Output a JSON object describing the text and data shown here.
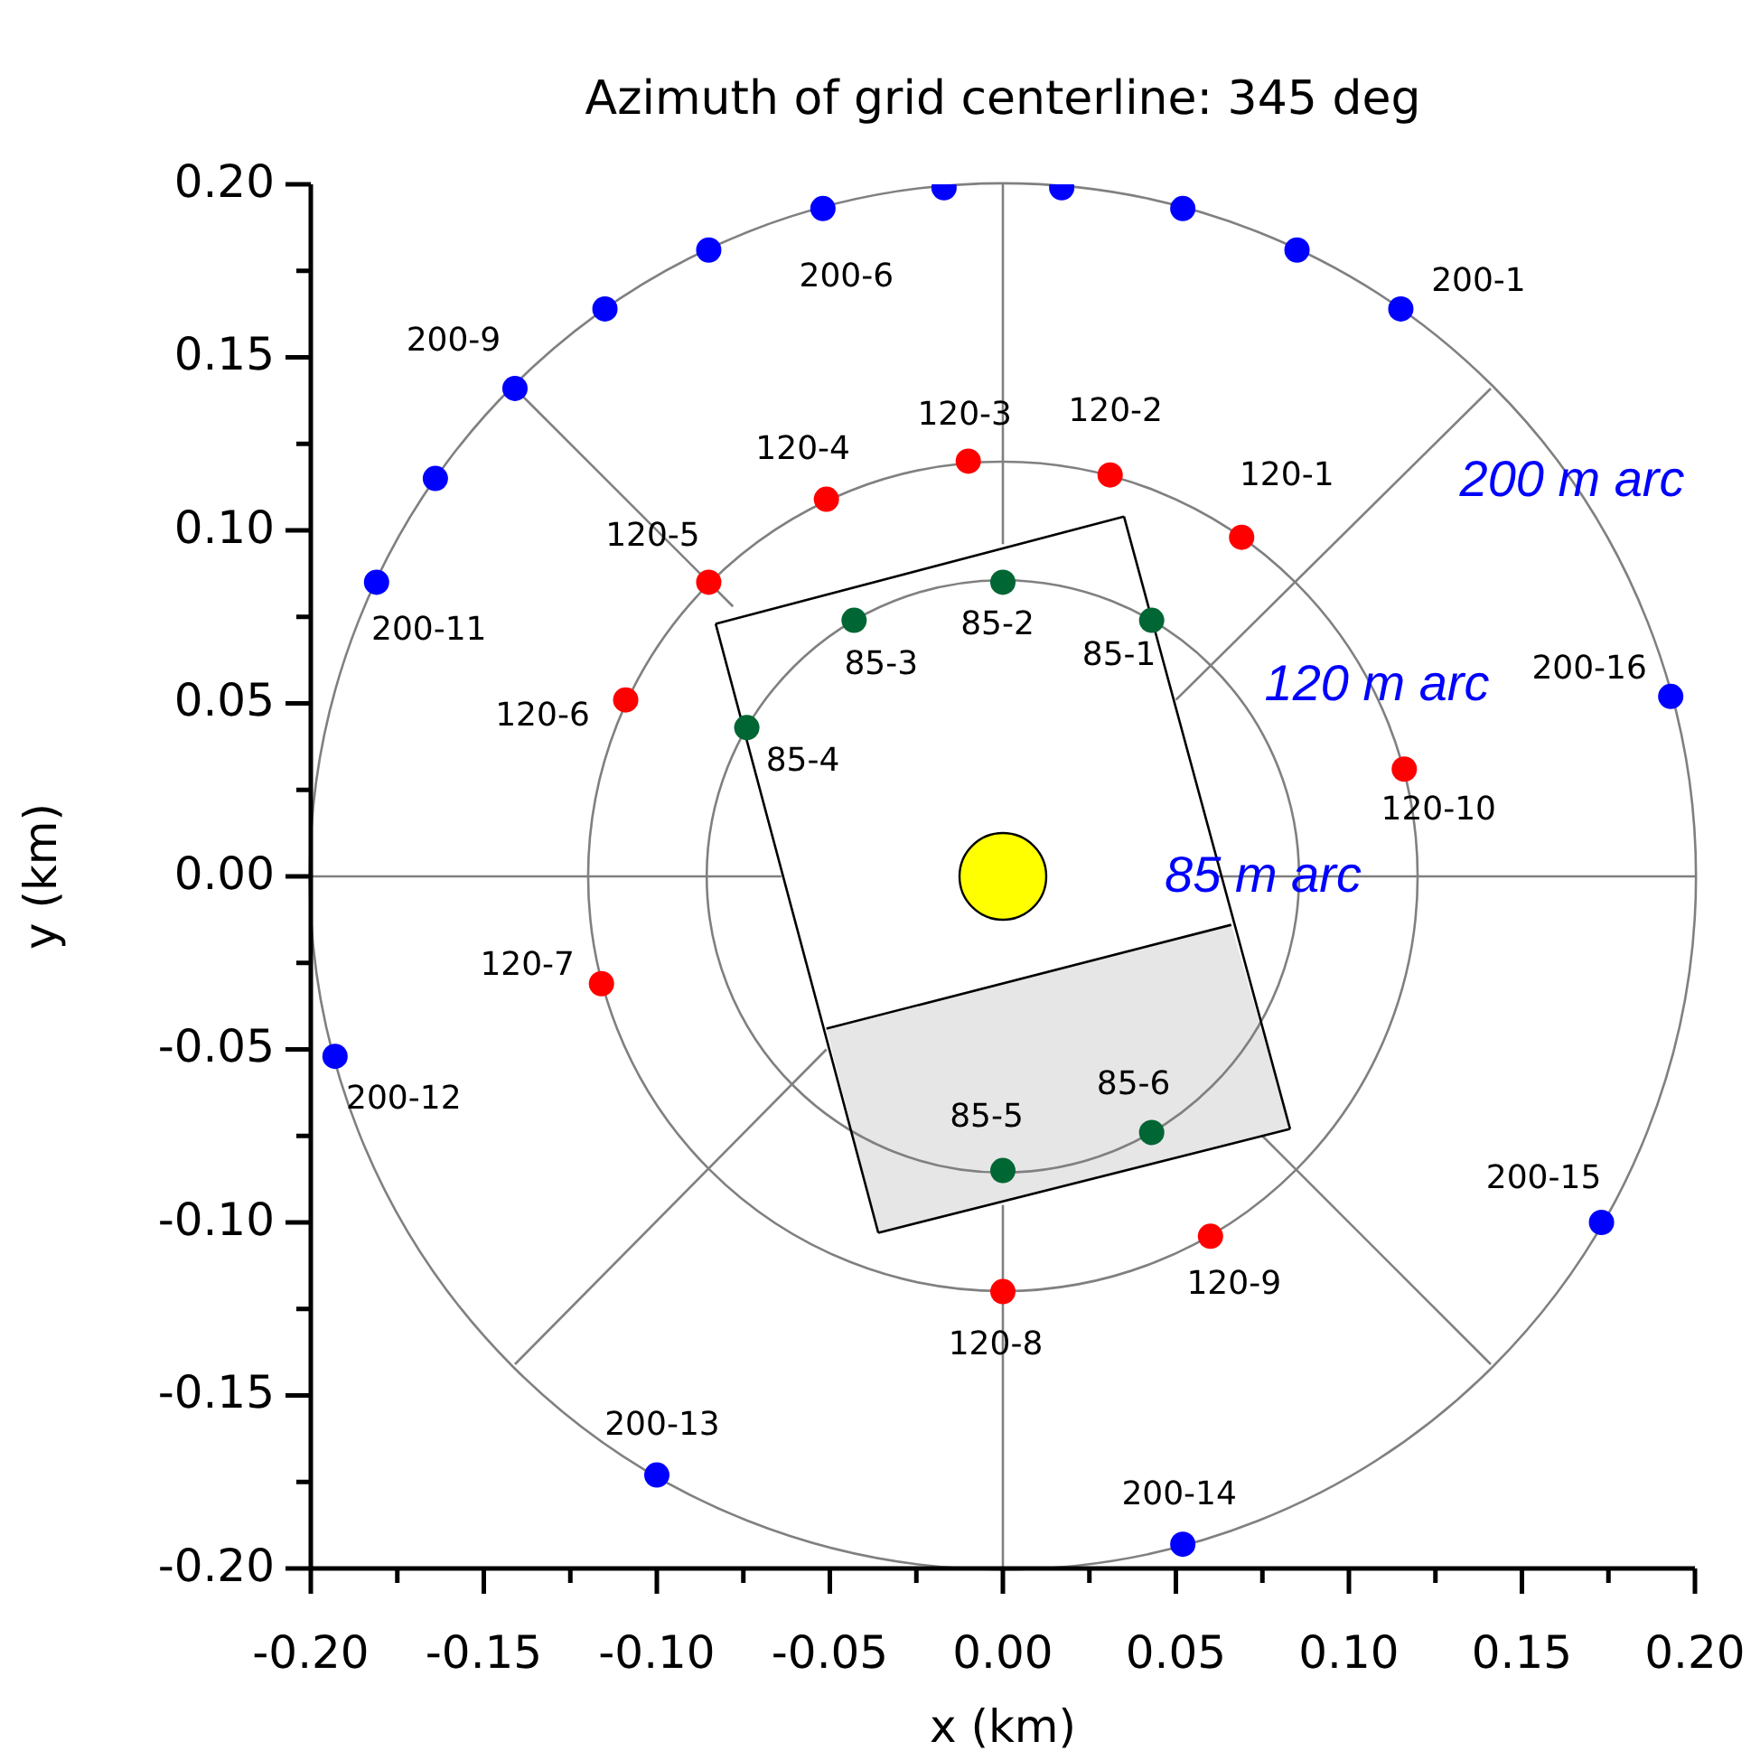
{
  "chart_data": {
    "type": "scatter",
    "title": "Azimuth of grid centerline: 345 deg",
    "xlabel": "x (km)",
    "ylabel": "y (km)",
    "xlim": [
      -0.2,
      0.2
    ],
    "ylim": [
      -0.2,
      0.2
    ],
    "xticks": [
      {
        "value": -0.2,
        "label": "-0.20"
      },
      {
        "value": -0.175,
        "label": null
      },
      {
        "value": -0.15,
        "label": "-0.15"
      },
      {
        "value": -0.125,
        "label": null
      },
      {
        "value": -0.1,
        "label": "-0.10"
      },
      {
        "value": -0.075,
        "label": null
      },
      {
        "value": -0.05,
        "label": "-0.05"
      },
      {
        "value": -0.025,
        "label": null
      },
      {
        "value": 0,
        "label": "0.00"
      },
      {
        "value": 0.025,
        "label": null
      },
      {
        "value": 0.05,
        "label": "0.05"
      },
      {
        "value": 0.075,
        "label": null
      },
      {
        "value": 0.1,
        "label": "0.10"
      },
      {
        "value": 0.125,
        "label": null
      },
      {
        "value": 0.15,
        "label": "0.15"
      },
      {
        "value": 0.175,
        "label": null
      },
      {
        "value": 0.2,
        "label": "0.20"
      }
    ],
    "yticks": [
      {
        "value": -0.2,
        "label": "-0.20"
      },
      {
        "value": -0.175,
        "label": null
      },
      {
        "value": -0.15,
        "label": "-0.15"
      },
      {
        "value": -0.125,
        "label": null
      },
      {
        "value": -0.1,
        "label": "-0.10"
      },
      {
        "value": -0.075,
        "label": null
      },
      {
        "value": -0.05,
        "label": "-0.05"
      },
      {
        "value": -0.025,
        "label": null
      },
      {
        "value": 0,
        "label": "0.00"
      },
      {
        "value": 0.025,
        "label": null
      },
      {
        "value": 0.05,
        "label": "0.05"
      },
      {
        "value": 0.075,
        "label": null
      },
      {
        "value": 0.1,
        "label": "0.10"
      },
      {
        "value": 0.125,
        "label": null
      },
      {
        "value": 0.15,
        "label": "0.15"
      },
      {
        "value": 0.175,
        "label": null
      },
      {
        "value": 0.2,
        "label": "0.20"
      }
    ],
    "series": [
      {
        "type": "line",
        "color": "#808080",
        "marker": "none",
        "x": [
          0,
          0
        ],
        "values": [
          0.2,
          0.096
        ]
      },
      {
        "type": "line",
        "color": "#808080",
        "marker": "none",
        "x": [
          0,
          0
        ],
        "values": [
          -0.095,
          -0.2
        ]
      },
      {
        "type": "line",
        "color": "#808080",
        "marker": "none",
        "x": [
          -0.2,
          -0.064
        ],
        "values": [
          0,
          0
        ]
      },
      {
        "type": "line",
        "color": "#808080",
        "marker": "none",
        "x": [
          0.062,
          0.2
        ],
        "values": [
          0,
          0
        ]
      },
      {
        "type": "line",
        "color": "#808080",
        "marker": "none",
        "x": [
          0.05,
          0.141
        ],
        "values": [
          0.051,
          0.141
        ]
      },
      {
        "type": "line",
        "color": "#808080",
        "marker": "none",
        "x": [
          -0.141,
          -0.078
        ],
        "values": [
          0.141,
          0.078
        ]
      },
      {
        "type": "line",
        "color": "#808080",
        "marker": "none",
        "x": [
          -0.141,
          -0.051
        ],
        "values": [
          -0.141,
          -0.05
        ]
      },
      {
        "type": "line",
        "color": "#808080",
        "marker": "none",
        "x": [
          0.075,
          0.141
        ],
        "values": [
          -0.075,
          -0.141
        ]
      },
      {
        "type": "line",
        "color": "#000000",
        "marker": "none",
        "x": [
          -0.083,
          0.035
        ],
        "values": [
          0.073,
          0.104
        ]
      },
      {
        "type": "line",
        "color": "#000000",
        "marker": "none",
        "x": [
          0.035,
          0.083
        ],
        "values": [
          0.104,
          -0.073
        ]
      },
      {
        "type": "line",
        "color": "#000000",
        "marker": "none",
        "x": [
          0.083,
          -0.036
        ],
        "values": [
          -0.073,
          -0.103
        ]
      },
      {
        "type": "line",
        "color": "#000000",
        "marker": "none",
        "x": [
          -0.083,
          -0.036
        ],
        "values": [
          0.073,
          -0.103
        ]
      },
      {
        "type": "line",
        "color": "#000000",
        "marker": "none",
        "x": [
          -0.051,
          0.066
        ],
        "values": [
          -0.044,
          -0.014
        ]
      },
      {
        "color": "#0000ff",
        "marker": "circle",
        "x": [
          0.115,
          0.085,
          0.052,
          0.017,
          -0.017,
          -0.052,
          -0.085,
          -0.115,
          -0.141,
          -0.164,
          -0.181,
          -0.193,
          -0.1,
          0.052,
          0.173,
          0.193
        ],
        "values": [
          0.164,
          0.181,
          0.193,
          0.199,
          0.199,
          0.193,
          0.181,
          0.164,
          0.141,
          0.115,
          0.085,
          -0.052,
          -0.173,
          -0.193,
          -0.1,
          0.052
        ]
      },
      {
        "color": "#ff0000",
        "marker": "circle",
        "x": [
          0.069,
          0.031,
          -0.01,
          -0.051,
          -0.085,
          -0.109,
          -0.116,
          0,
          0.06,
          0.116
        ],
        "values": [
          0.098,
          0.116,
          0.12,
          0.109,
          0.085,
          0.051,
          -0.031,
          -0.12,
          -0.104,
          0.031
        ]
      },
      {
        "color": "#006633",
        "marker": "circle",
        "x": [
          0.043,
          0,
          -0.043,
          -0.074,
          0,
          0.043
        ],
        "values": [
          0.074,
          0.085,
          0.074,
          0.043,
          -0.085,
          -0.074
        ]
      },
      {
        "type": "bubble",
        "color": "#ffff00",
        "x": [
          0
        ],
        "values": [
          0
        ],
        "sizes": [
          1
        ]
      }
    ],
    "annotations": [
      {
        "text": "200-1",
        "x": 0.115,
        "y": 0.164
      },
      {
        "text": "200-6",
        "x": -0.052,
        "y": 0.193
      },
      {
        "text": "200-9",
        "x": -0.141,
        "y": 0.141
      },
      {
        "text": "200-11",
        "x": -0.181,
        "y": 0.085
      },
      {
        "text": "200-12",
        "x": -0.193,
        "y": -0.052
      },
      {
        "text": "200-13",
        "x": -0.1,
        "y": -0.173
      },
      {
        "text": "200-14",
        "x": 0.052,
        "y": -0.193
      },
      {
        "text": "200-15",
        "x": 0.173,
        "y": -0.1
      },
      {
        "text": "200-16",
        "x": 0.193,
        "y": 0.052
      },
      {
        "text": "120-1",
        "x": 0.069,
        "y": 0.098
      },
      {
        "text": "120-2",
        "x": 0.031,
        "y": 0.116
      },
      {
        "text": "120-3",
        "x": -0.01,
        "y": 0.12
      },
      {
        "text": "120-4",
        "x": -0.051,
        "y": 0.109
      },
      {
        "text": "120-5",
        "x": -0.085,
        "y": 0.085
      },
      {
        "text": "120-6",
        "x": -0.109,
        "y": 0.051
      },
      {
        "text": "120-7",
        "x": -0.116,
        "y": -0.031
      },
      {
        "text": "120-8",
        "x": 0,
        "y": -0.12
      },
      {
        "text": "120-9",
        "x": 0.06,
        "y": -0.104
      },
      {
        "text": "120-10",
        "x": 0.116,
        "y": 0.031
      },
      {
        "text": "85-1",
        "x": 0.043,
        "y": 0.074
      },
      {
        "text": "85-2",
        "x": 0,
        "y": 0.085
      },
      {
        "text": "85-3",
        "x": -0.043,
        "y": 0.074
      },
      {
        "text": "85-4",
        "x": -0.074,
        "y": 0.043
      },
      {
        "text": "85-5",
        "x": 0,
        "y": -0.085
      },
      {
        "text": "85-6",
        "x": 0.043,
        "y": -0.074
      },
      "200 m arc",
      "120 m arc",
      "85 m arc"
    ]
  }
}
